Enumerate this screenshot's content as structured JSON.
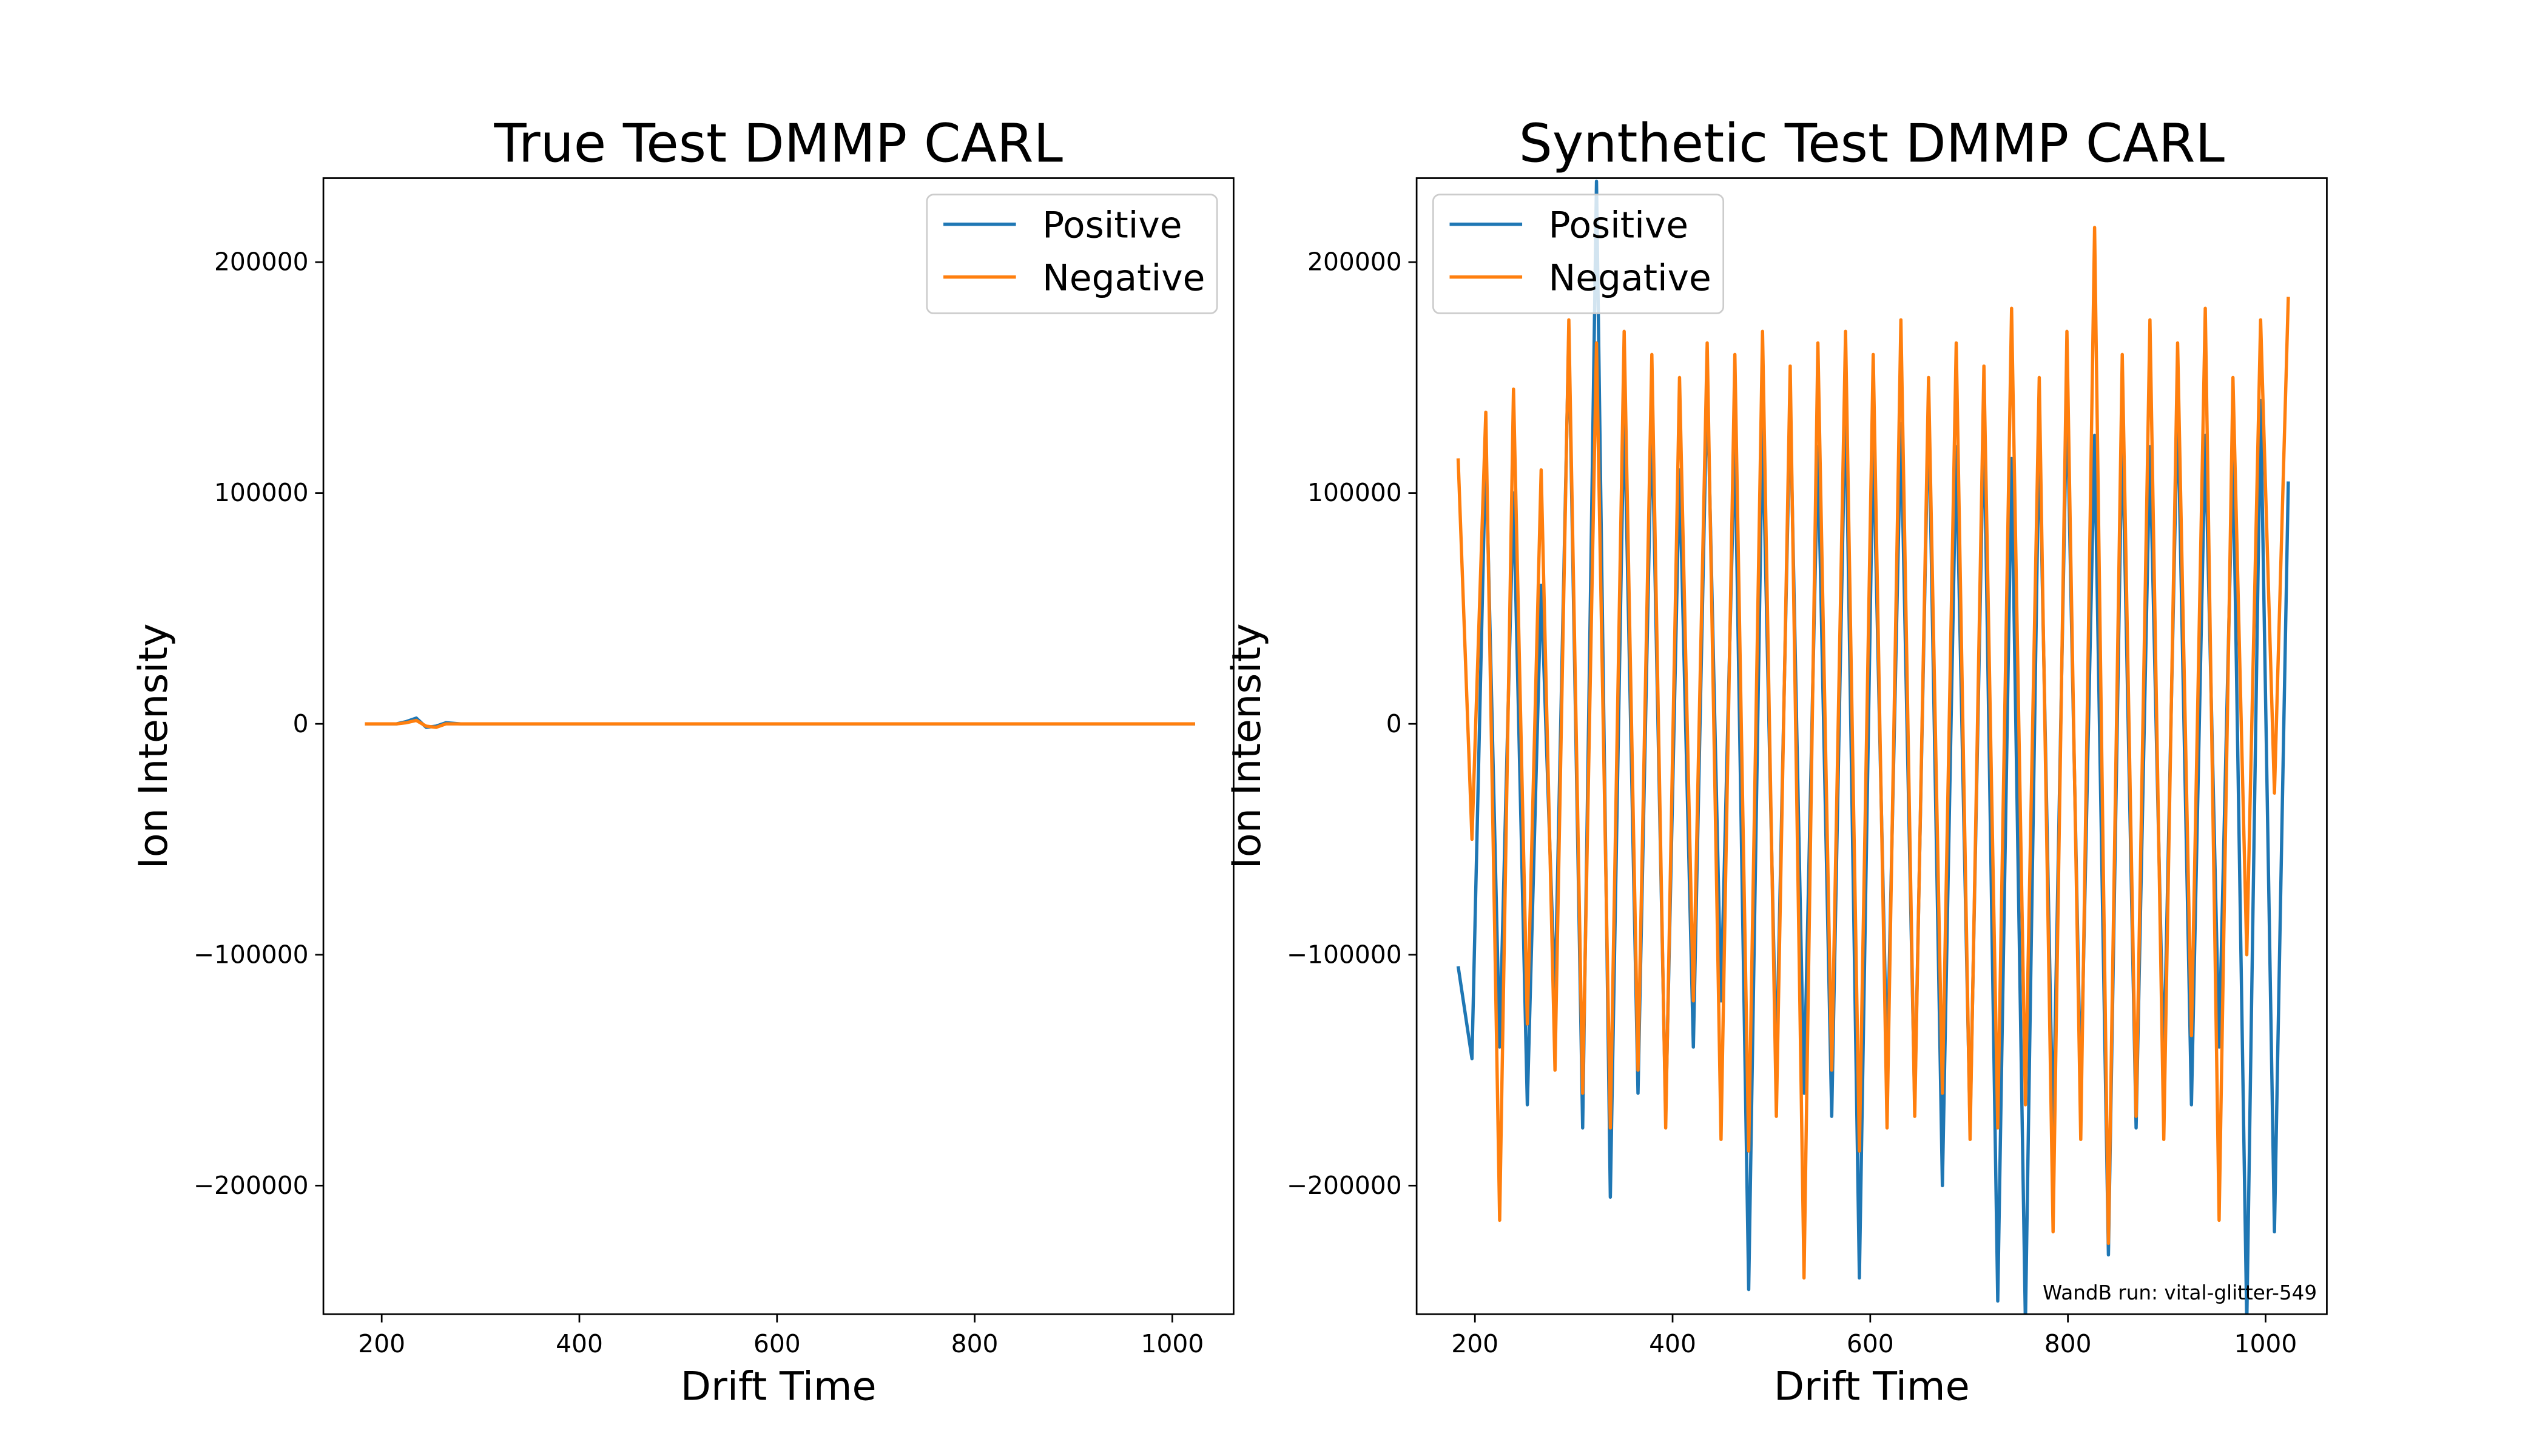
{
  "chart_data": [
    {
      "type": "line",
      "title": "True Test DMMP CARL",
      "xlabel": "Drift Time",
      "ylabel": "Ion Intensity",
      "x": [
        183,
        200,
        215,
        225,
        235,
        245,
        255,
        265,
        280,
        300,
        400,
        500,
        600,
        700,
        800,
        900,
        1000,
        1023
      ],
      "series": [
        {
          "name": "Positive",
          "color": "#1f77b4",
          "values": [
            0,
            0,
            0,
            1000,
            2500,
            -1500,
            -1000,
            500,
            0,
            0,
            0,
            0,
            0,
            0,
            0,
            0,
            0,
            0
          ]
        },
        {
          "name": "Negative",
          "color": "#ff7f0e",
          "values": [
            0,
            0,
            0,
            500,
            1500,
            -1000,
            -1500,
            0,
            0,
            0,
            0,
            0,
            0,
            0,
            0,
            0,
            0,
            0
          ]
        }
      ],
      "xlim": [
        141,
        1062
      ],
      "ylim": [
        -255700,
        236400
      ],
      "xticks": [
        200,
        400,
        600,
        800,
        1000
      ],
      "yticks": [
        -200000,
        -100000,
        0,
        100000,
        200000
      ],
      "legend": "upper right"
    },
    {
      "type": "line",
      "title": "Synthetic Test DMMP CARL",
      "xlabel": "Drift Time",
      "ylabel": "Ion Intensity",
      "annotation": "WandB run: vital-glitter-549",
      "x": [
        183,
        197,
        211,
        225,
        239,
        253,
        267,
        281,
        295,
        309,
        323,
        337,
        351,
        365,
        379,
        393,
        407,
        421,
        435,
        449,
        463,
        477,
        491,
        505,
        519,
        533,
        547,
        561,
        575,
        589,
        603,
        617,
        631,
        645,
        659,
        673,
        687,
        701,
        715,
        729,
        743,
        757,
        771,
        785,
        799,
        813,
        827,
        841,
        855,
        869,
        883,
        897,
        911,
        925,
        939,
        953,
        967,
        981,
        995,
        1009,
        1023
      ],
      "series": [
        {
          "name": "Positive",
          "color": "#1f77b4",
          "values": [
            -105000,
            -145000,
            120000,
            -140000,
            100000,
            -165000,
            60000,
            -120000,
            170000,
            -175000,
            235000,
            -205000,
            140000,
            -160000,
            135000,
            -170000,
            110000,
            -140000,
            150000,
            -120000,
            125000,
            -245000,
            130000,
            -150000,
            140000,
            -160000,
            120000,
            -170000,
            145000,
            -240000,
            125000,
            -150000,
            130000,
            -165000,
            140000,
            -200000,
            120000,
            -175000,
            135000,
            -250000,
            115000,
            -260000,
            130000,
            -180000,
            145000,
            -160000,
            125000,
            -230000,
            130000,
            -175000,
            120000,
            -150000,
            140000,
            -165000,
            125000,
            -140000,
            120000,
            -260000,
            140000,
            -220000,
            105000
          ]
        },
        {
          "name": "Negative",
          "color": "#ff7f0e",
          "values": [
            115000,
            -50000,
            135000,
            -215000,
            145000,
            -130000,
            110000,
            -150000,
            175000,
            -160000,
            165000,
            -175000,
            170000,
            -150000,
            160000,
            -175000,
            150000,
            -120000,
            165000,
            -180000,
            160000,
            -185000,
            170000,
            -170000,
            155000,
            -240000,
            165000,
            -150000,
            170000,
            -185000,
            160000,
            -175000,
            175000,
            -170000,
            150000,
            -160000,
            165000,
            -180000,
            155000,
            -175000,
            180000,
            -165000,
            150000,
            -220000,
            170000,
            -180000,
            215000,
            -225000,
            160000,
            -170000,
            175000,
            -180000,
            165000,
            -135000,
            180000,
            -215000,
            150000,
            -100000,
            175000,
            -30000,
            185000
          ]
        }
      ],
      "xlim": [
        141,
        1062
      ],
      "ylim": [
        -255700,
        236400
      ],
      "xticks": [
        200,
        400,
        600,
        800,
        1000
      ],
      "yticks": [
        -200000,
        -100000,
        0,
        100000,
        200000
      ],
      "legend": "upper left"
    }
  ]
}
